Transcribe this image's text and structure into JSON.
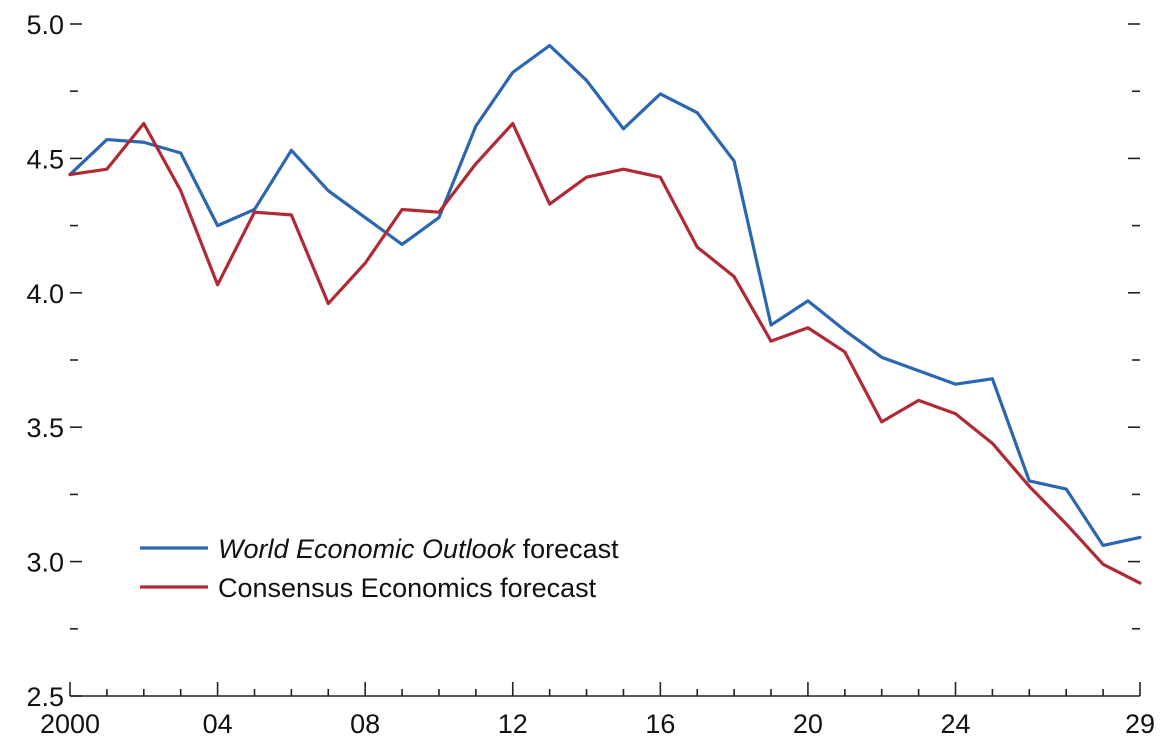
{
  "chart_data": {
    "type": "line",
    "title": "",
    "xlabel": "",
    "ylabel": "",
    "ylim": [
      2.5,
      5.0
    ],
    "xlim": [
      2000,
      2029
    ],
    "y_ticks_major": [
      {
        "value": 2.5,
        "label": "2.5"
      },
      {
        "value": 3.0,
        "label": "3.0"
      },
      {
        "value": 3.5,
        "label": "3.5"
      },
      {
        "value": 4.0,
        "label": "4.0"
      },
      {
        "value": 4.5,
        "label": "4.5"
      },
      {
        "value": 5.0,
        "label": "5.0"
      }
    ],
    "y_ticks_minor": [
      2.75,
      3.25,
      3.75,
      4.25,
      4.75
    ],
    "x_ticks": [
      {
        "value": 2000,
        "label": "2000"
      },
      {
        "value": 2004,
        "label": "04"
      },
      {
        "value": 2008,
        "label": "08"
      },
      {
        "value": 2012,
        "label": "12"
      },
      {
        "value": 2016,
        "label": "16"
      },
      {
        "value": 2020,
        "label": "20"
      },
      {
        "value": 2024,
        "label": "24"
      },
      {
        "value": 2029,
        "label": "29"
      }
    ],
    "x": [
      2000,
      2001,
      2002,
      2003,
      2004,
      2005,
      2006,
      2007,
      2008,
      2009,
      2010,
      2011,
      2012,
      2013,
      2014,
      2015,
      2016,
      2017,
      2018,
      2019,
      2020,
      2021,
      2022,
      2023,
      2024,
      2025,
      2026,
      2027,
      2028,
      2029
    ],
    "series": [
      {
        "name_italic": "World Economic Outlook",
        "name_rest": " forecast",
        "color": "#2b67b1",
        "values": [
          4.44,
          4.57,
          4.56,
          4.52,
          4.25,
          4.31,
          4.53,
          4.38,
          4.28,
          4.18,
          4.28,
          4.62,
          4.82,
          4.92,
          4.79,
          4.61,
          4.74,
          4.67,
          4.49,
          3.88,
          3.97,
          3.86,
          3.76,
          3.71,
          3.66,
          3.68,
          3.3,
          3.27,
          3.06,
          3.09
        ]
      },
      {
        "name_italic": "",
        "name_rest": "Consensus Economics forecast",
        "color": "#b02a36",
        "values": [
          4.44,
          4.46,
          4.63,
          4.38,
          4.03,
          4.3,
          4.29,
          3.96,
          4.11,
          4.31,
          4.3,
          4.48,
          4.63,
          4.33,
          4.43,
          4.46,
          4.43,
          4.17,
          4.06,
          3.82,
          3.87,
          3.78,
          3.52,
          3.6,
          3.55,
          3.44,
          3.28,
          3.14,
          2.99,
          2.92
        ]
      }
    ],
    "grid": false,
    "legend_position": "bottom-left"
  }
}
